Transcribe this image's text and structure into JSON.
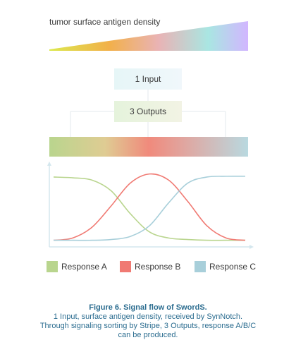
{
  "header": {
    "antigen_label": "tumor surface antigen density"
  },
  "flow": {
    "input_label": "1 Input",
    "output_label": "3 Outputs"
  },
  "chart_data": {
    "type": "line",
    "x": [
      0,
      10,
      20,
      30,
      40,
      50,
      60,
      70,
      80,
      90,
      100
    ],
    "series": [
      {
        "name": "Response A",
        "color": "#b9d58e",
        "values": [
          88,
          87,
          84,
          70,
          40,
          16,
          8,
          6,
          5,
          5,
          5
        ]
      },
      {
        "name": "Response B",
        "color": "#f07a73",
        "values": [
          5,
          8,
          22,
          50,
          80,
          92,
          84,
          56,
          24,
          8,
          5
        ]
      },
      {
        "name": "Response C",
        "color": "#a8cfda",
        "values": [
          5,
          5,
          5,
          6,
          10,
          24,
          54,
          80,
          88,
          89,
          89
        ]
      }
    ],
    "title": "",
    "xlabel": "",
    "ylabel": "",
    "ylim": [
      0,
      100
    ],
    "grid": false,
    "legend": "bottom"
  },
  "legend": {
    "items": [
      {
        "label": "Response A",
        "color": "#b9d58e"
      },
      {
        "label": "Response B",
        "color": "#f07a73"
      },
      {
        "label": "Response C",
        "color": "#a8cfda"
      }
    ]
  },
  "caption": {
    "title": "Figure 6. Signal flow of SwordS.",
    "line1": "1 Input, surface antigen density, received by SynNotch.",
    "line2": "Through signaling sorting by Stripe, 3 Outputs, response A/B/C",
    "line3": "can be produced."
  },
  "colors": {
    "wedge_start": "#dce94e",
    "wedge_end": "#d2b6ff",
    "axis": "#d4e7ee",
    "caption": "#2c6d90"
  }
}
